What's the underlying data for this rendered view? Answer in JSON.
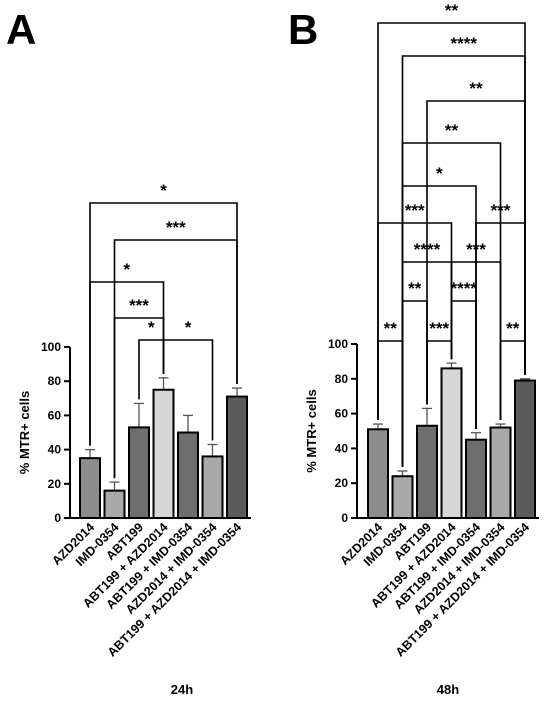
{
  "chart_data": [
    {
      "type": "bar",
      "panel_label": "A",
      "xlabel": "24h",
      "ylabel": "% MTR+ cells",
      "ylim": [
        0,
        100
      ],
      "yticks": [
        0,
        20,
        40,
        60,
        80,
        100
      ],
      "categories": [
        "AZD2014",
        "IMD-0354",
        "ABT199",
        "ABT199 + AZD2014",
        "ABT199 + IMD-0354",
        "AZD2014 + IMD-0354",
        "ABT199 + AZD2014 + IMD-0354"
      ],
      "values": [
        35,
        16,
        53,
        75,
        50,
        36,
        71
      ],
      "errors": [
        5,
        5,
        14,
        7,
        10,
        7,
        5
      ],
      "colors": [
        "#8c8c8c",
        "#a9a9a9",
        "#6e6e6e",
        "#d6d6d6",
        "#6e6e6e",
        "#a9a9a9",
        "#5c5c5c"
      ],
      "comparisons": [
        {
          "from": 2,
          "to": 3,
          "label": "*"
        },
        {
          "from": 3,
          "to": 5,
          "label": "*"
        },
        {
          "from": 1,
          "to": 3,
          "label": "***"
        },
        {
          "from": 0,
          "to": 3,
          "label": "*"
        },
        {
          "from": 1,
          "to": 6,
          "label": "***"
        },
        {
          "from": 0,
          "to": 6,
          "label": "*"
        }
      ]
    },
    {
      "type": "bar",
      "panel_label": "B",
      "xlabel": "48h",
      "ylabel": "% MTR+ cells",
      "ylim": [
        0,
        100
      ],
      "yticks": [
        0,
        20,
        40,
        60,
        80,
        100
      ],
      "categories": [
        "AZD2014",
        "IMD-0354",
        "ABT199",
        "ABT199 + AZD2014",
        "ABT199 + IMD-0354",
        "AZD2014 + IMD-0354",
        "ABT199 + AZD2014 + IMD-0354"
      ],
      "values": [
        51,
        24,
        53,
        86,
        45,
        52,
        79
      ],
      "errors": [
        3,
        3,
        10,
        3,
        4,
        2,
        1
      ],
      "colors": [
        "#8c8c8c",
        "#a9a9a9",
        "#6e6e6e",
        "#d6d6d6",
        "#6e6e6e",
        "#a9a9a9",
        "#5c5c5c"
      ],
      "comparisons": [
        {
          "from": 0,
          "to": 1,
          "label": "**"
        },
        {
          "from": 2,
          "to": 3,
          "label": "***"
        },
        {
          "from": 5,
          "to": 6,
          "label": "**"
        },
        {
          "from": 1,
          "to": 2,
          "label": "**"
        },
        {
          "from": 3,
          "to": 4,
          "label": "****"
        },
        {
          "from": 1,
          "to": 3,
          "label": "****"
        },
        {
          "from": 3,
          "to": 5,
          "label": "***"
        },
        {
          "from": 0,
          "to": 3,
          "label": "***"
        },
        {
          "from": 4,
          "to": 6,
          "label": "***"
        },
        {
          "from": 1,
          "to": 4,
          "label": "*"
        },
        {
          "from": 1,
          "to": 5,
          "label": "**"
        },
        {
          "from": 2,
          "to": 6,
          "label": "**"
        },
        {
          "from": 1,
          "to": 6,
          "label": "****"
        },
        {
          "from": 0,
          "to": 6,
          "label": "**"
        }
      ]
    }
  ]
}
